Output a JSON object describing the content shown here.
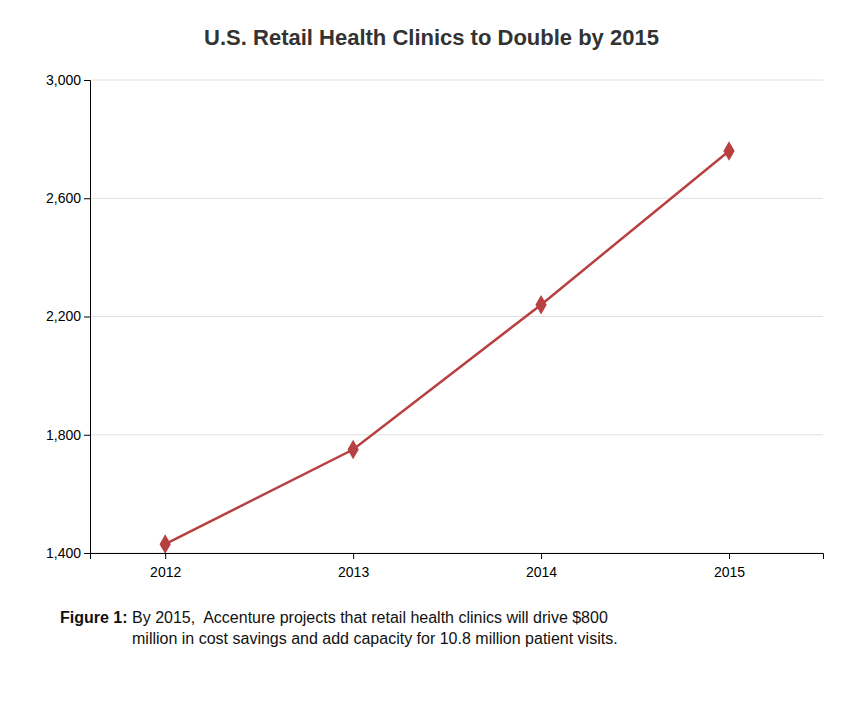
{
  "chart_data": {
    "type": "line",
    "title": "U.S. Retail Health Clinics to Double by 2015",
    "x": [
      2012,
      2013,
      2014,
      2015
    ],
    "values": [
      1430,
      1750,
      2240,
      2760
    ],
    "color": "#b94040",
    "marker": "diamond",
    "ylim": [
      1400,
      3000
    ],
    "yticks": [
      {
        "value": 1400,
        "label": "1,400"
      },
      {
        "value": 1800,
        "label": "1,800"
      },
      {
        "value": 2200,
        "label": "2,200"
      },
      {
        "value": 2600,
        "label": "2,600"
      },
      {
        "value": 3000,
        "label": "3,000"
      }
    ],
    "xlim": [
      2011.6,
      2015.5
    ],
    "xticks": [
      2012,
      2013,
      2014,
      2015
    ],
    "grid": true,
    "annotations": [
      "Figure 1:",
      " By 2015,  Accenture projects that retail health clinics will drive $800\n million in cost savings and add capacity for 10.8 million patient visits."
    ]
  }
}
